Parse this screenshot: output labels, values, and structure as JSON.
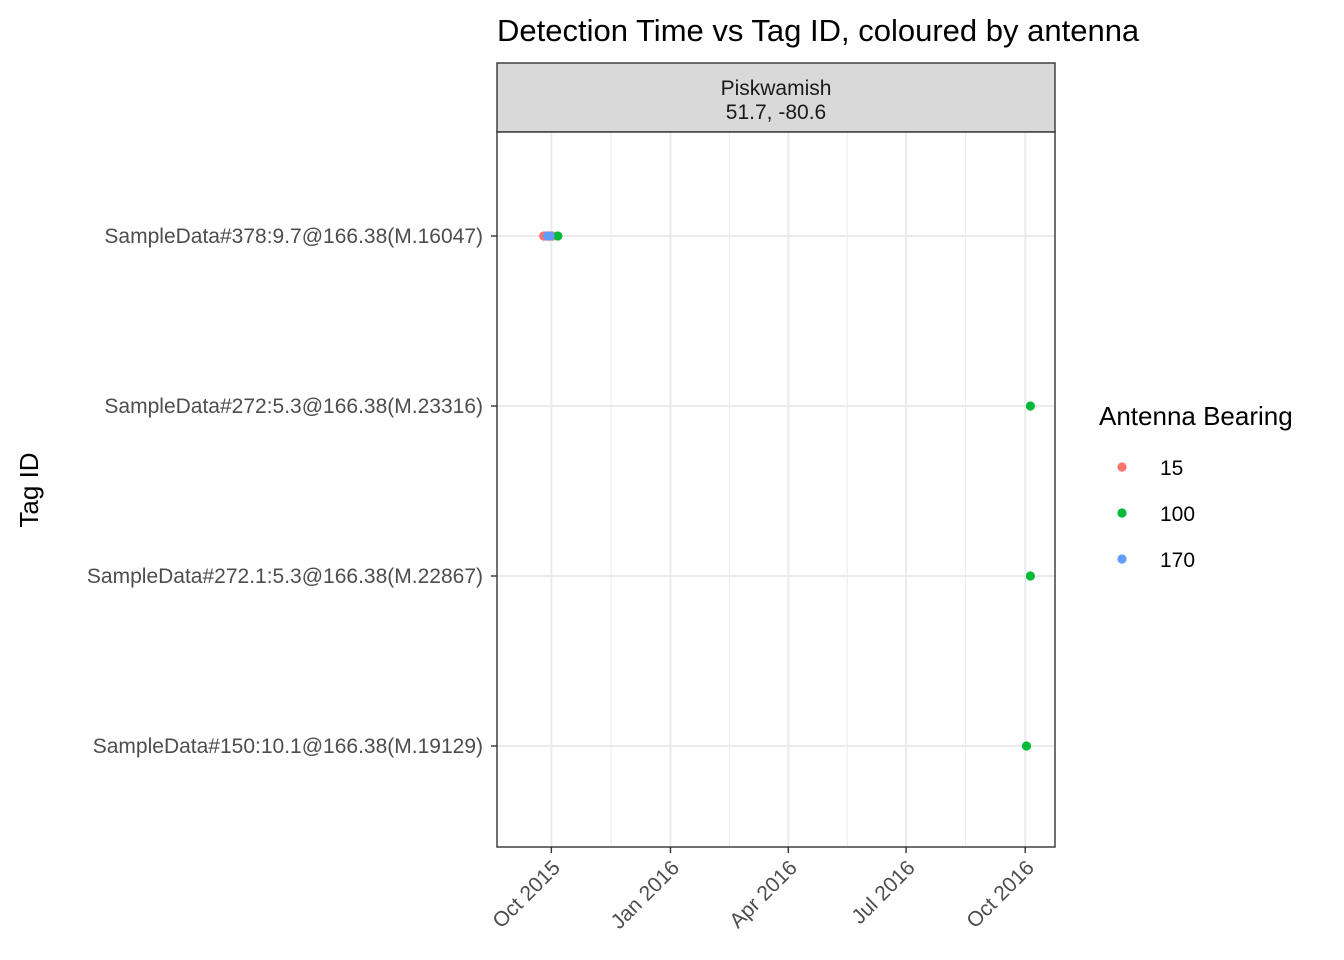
{
  "chart_data": {
    "type": "scatter",
    "title": "Detection Time vs Tag ID, coloured by antenna",
    "facet": {
      "name": "Piskwamish",
      "coords": "51.7, -80.6"
    },
    "xlabel": "",
    "ylabel": "Tag ID",
    "x_type": "date",
    "xlim": [
      "2015-08-20",
      "2016-10-24"
    ],
    "x_ticks": [
      {
        "date": "2015-10-01",
        "label": "Oct 2015"
      },
      {
        "date": "2016-01-01",
        "label": "Jan 2016"
      },
      {
        "date": "2016-04-01",
        "label": "Apr 2016"
      },
      {
        "date": "2016-07-01",
        "label": "Jul 2016"
      },
      {
        "date": "2016-10-01",
        "label": "Oct 2016"
      }
    ],
    "categories": [
      "SampleData#378:9.7@166.38(M.16047)",
      "SampleData#272:5.3@166.38(M.23316)",
      "SampleData#272.1:5.3@166.38(M.22867)",
      "SampleData#150:10.1@166.38(M.19129)"
    ],
    "legend": {
      "title": "Antenna Bearing",
      "position": "right"
    },
    "grid": true,
    "series": [
      {
        "name": "15",
        "color": "#F8766D",
        "points": [
          {
            "x": "2015-09-25",
            "y": "SampleData#378:9.7@166.38(M.16047)"
          },
          {
            "x": "2015-09-26",
            "y": "SampleData#378:9.7@166.38(M.16047)"
          },
          {
            "x": "2015-09-27",
            "y": "SampleData#378:9.7@166.38(M.16047)"
          },
          {
            "x": "2015-09-29",
            "y": "SampleData#378:9.7@166.38(M.16047)"
          },
          {
            "x": "2015-09-30",
            "y": "SampleData#378:9.7@166.38(M.16047)"
          },
          {
            "x": "2015-10-01",
            "y": "SampleData#378:9.7@166.38(M.16047)"
          },
          {
            "x": "2015-10-02",
            "y": "SampleData#378:9.7@166.38(M.16047)"
          }
        ]
      },
      {
        "name": "100",
        "color": "#00BA38",
        "points": [
          {
            "x": "2015-10-06",
            "y": "SampleData#378:9.7@166.38(M.16047)"
          },
          {
            "x": "2016-10-05",
            "y": "SampleData#272:5.3@166.38(M.23316)"
          },
          {
            "x": "2016-10-05",
            "y": "SampleData#272.1:5.3@166.38(M.22867)"
          },
          {
            "x": "2016-10-02",
            "y": "SampleData#150:10.1@166.38(M.19129)"
          }
        ]
      },
      {
        "name": "170",
        "color": "#619CFF",
        "points": [
          {
            "x": "2015-09-28",
            "y": "SampleData#378:9.7@166.38(M.16047)"
          },
          {
            "x": "2015-09-29",
            "y": "SampleData#378:9.7@166.38(M.16047)"
          },
          {
            "x": "2015-09-30",
            "y": "SampleData#378:9.7@166.38(M.16047)"
          }
        ]
      }
    ]
  }
}
